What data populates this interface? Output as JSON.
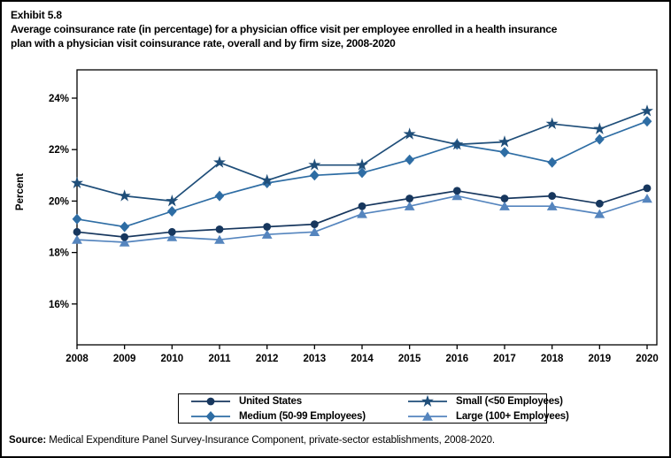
{
  "exhibit": {
    "label": "Exhibit 5.8",
    "title_lines": [
      "Average coinsurance rate (in percentage) for a physician office visit per employee enrolled in a health insurance",
      "plan with a physician visit coinsurance rate, overall and by firm size, 2008-2020"
    ]
  },
  "source": {
    "label": "Source:",
    "text": " Medical Expenditure Panel Survey-Insurance Component, private-sector establishments, 2008-2020."
  },
  "chart_data": {
    "type": "line",
    "title": "",
    "xlabel": "",
    "ylabel": "Percent",
    "x": [
      2008,
      2009,
      2010,
      2011,
      2012,
      2013,
      2014,
      2015,
      2016,
      2017,
      2018,
      2019,
      2020
    ],
    "ylim": [
      14.4,
      25.0
    ],
    "yticks": [
      16,
      18,
      20,
      22,
      24
    ],
    "ytick_suffix": "%",
    "grid": false,
    "legend_position": "bottom",
    "axis_color": "#000000",
    "series": [
      {
        "name": "United States",
        "marker": "circle",
        "color": "#17375E",
        "values": [
          18.8,
          18.6,
          18.8,
          18.9,
          19.0,
          19.1,
          19.8,
          20.1,
          20.4,
          20.1,
          20.2,
          19.9,
          20.5
        ]
      },
      {
        "name": "Small (<50 Employees)",
        "marker": "star",
        "color": "#1F4E79",
        "values": [
          20.7,
          20.2,
          20.0,
          21.5,
          20.8,
          21.4,
          21.4,
          22.6,
          22.2,
          22.3,
          23.0,
          22.8,
          23.5
        ]
      },
      {
        "name": "Medium (50-99 Employees)",
        "marker": "diamond",
        "color": "#2E6DA4",
        "values": [
          19.3,
          19.0,
          19.6,
          20.2,
          20.7,
          21.0,
          21.1,
          21.6,
          22.2,
          21.9,
          21.5,
          22.4,
          23.1
        ]
      },
      {
        "name": "Large (100+ Employees)",
        "marker": "triangle",
        "color": "#5585BE",
        "values": [
          18.5,
          18.4,
          18.6,
          18.5,
          18.7,
          18.8,
          19.5,
          19.8,
          20.2,
          19.8,
          19.8,
          19.5,
          20.1
        ]
      }
    ],
    "legend_grid_order": [
      0,
      1,
      2,
      3
    ]
  }
}
